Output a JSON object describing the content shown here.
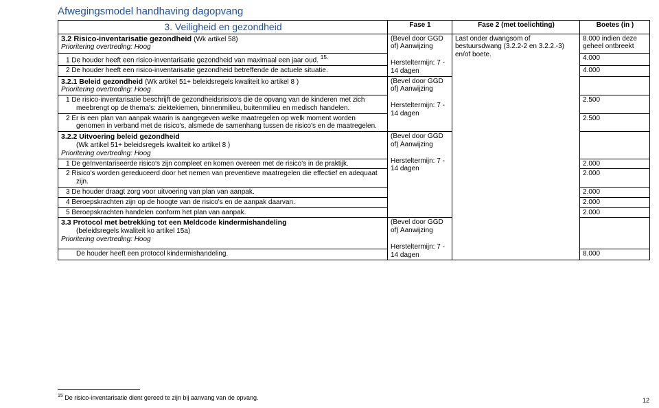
{
  "doc_title": "Afwegingsmodel handhaving dagopvang",
  "headers": {
    "section": "3. Veiligheid en gezondheid",
    "fase1": "Fase 1",
    "fase2": "Fase 2 (met toelichting)",
    "boetes": "Boetes (in  )"
  },
  "r32": {
    "title": "3.2 Risico-inventarisatie gezondheid (Wk artikel 58)",
    "title_main": "3.2 Risico-inventarisatie gezondheid ",
    "title_paren": "(Wk artikel 58)",
    "prio": "Prioritering overtreding: Hoog",
    "p1": "1 De houder heeft een risico-inventarisatie gezondheid van maximaal een jaar oud. ",
    "fn_mark": "15.",
    "p2": "2 De houder heeft een risico-inventarisatie gezondheid betreffende de actuele situatie.",
    "fase1a": "(Bevel door GGD of) Aanwijzing",
    "fase1b": "Hersteltermijn: 7 - 14 dagen",
    "fase2": "Last onder dwangsom of bestuursdwang (3.2.2-2 en 3.2.2.-3) en/of boete.",
    "boete_head": "8.000 indien deze geheel ontbreekt",
    "boete_p1": "4.000",
    "boete_p2": "4.000"
  },
  "r321": {
    "title_main": "3.2.1 Beleid gezondheid ",
    "title_paren": "(Wk artikel 51+ beleidsregels kwaliteit ko artikel 8 )",
    "prio": "Prioritering overtreding: Hoog",
    "p1": "1 De risico-inventarisatie beschrijft de gezondheidsrisico's die de opvang van de kinderen met zich meebrengt op de thema's: ziektekiemen, binnenmilieu, buitenmilieu en medisch handelen.",
    "p2": "2 Er is een plan van aanpak waarin is aangegeven welke maatregelen op welk moment worden genomen in verband met de risico's, alsmede de samenhang tussen de risico's en de maatregelen.",
    "fase1a": "(Bevel door GGD of) Aanwijzing",
    "fase1b": "Hersteltermijn: 7 - 14 dagen",
    "boete_p1": "2.500",
    "boete_p2": "2.500"
  },
  "r322": {
    "title": "3.2.2 Uitvoering beleid gezondheid",
    "sub": "(Wk artikel 51+ beleidsregels kwaliteit ko artikel 8 )",
    "prio": "Prioritering overtreding: Hoog",
    "p1": "1 De geïnventariseerde risico's zijn compleet en komen overeen met de risico's in de praktijk.",
    "p2": "2 Risico's worden gereduceerd door het nemen van preventieve maatregelen die effectief en adequaat zijn.",
    "p3": "3 De houder draagt zorg voor uitvoering van plan van aanpak.",
    "p4": "4 Beroepskrachten zijn op de hoogte van de risico's en de aanpak daarvan.",
    "p5": "5 Beroepskrachten handelen conform het plan van aanpak.",
    "fase1a": "(Bevel door GGD of) Aanwijzing",
    "fase1b": "Hersteltermijn: 7 - 14 dagen",
    "boete_p1": "2.000",
    "boete_p2": "2.000",
    "boete_p3": "2.000",
    "boete_p4": "2.000",
    "boete_p5": "2.000"
  },
  "r33": {
    "title": "3.3  Protocol met betrekking tot een Meldcode kindermishandeling",
    "sub": "(beleidsregels kwaliteit ko artikel 15a)",
    "prio": "Prioritering overtreding: Hoog",
    "p1": "De houder heeft een protocol kindermishandeling.",
    "fase1a": "(Bevel door GGD of) Aanwijzing",
    "fase1b": "Hersteltermijn: 7 - 14 dagen",
    "boete_p1": "8.000"
  },
  "footnote": {
    "num": "15",
    "text": " De risico-inventarisatie dient gereed te zijn bij aanvang van de opvang."
  },
  "page_number": "12"
}
